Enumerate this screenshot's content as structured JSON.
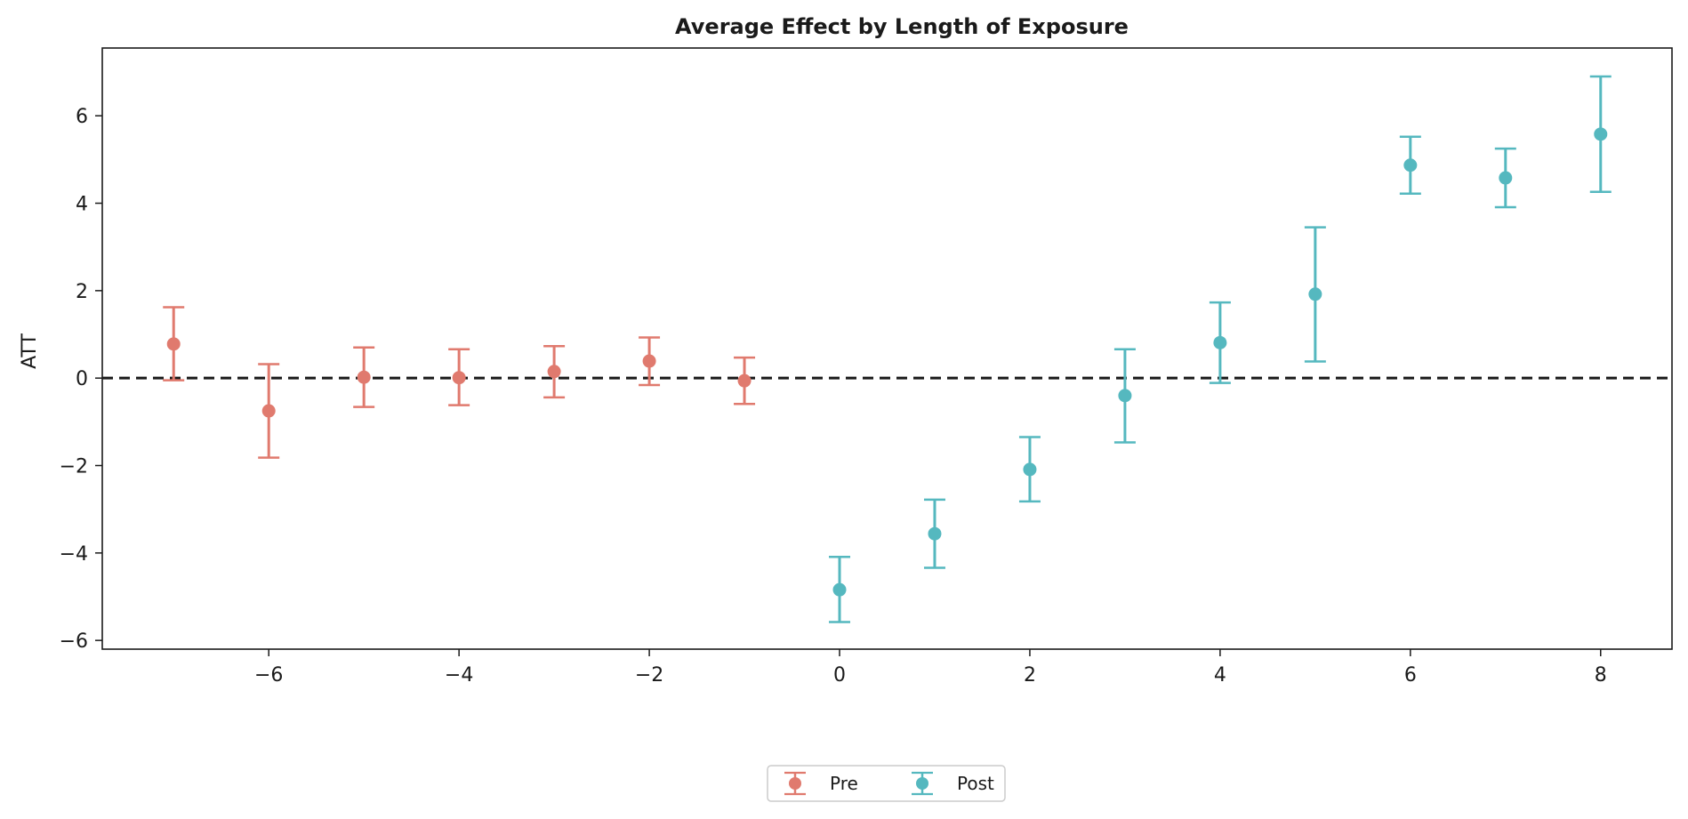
{
  "chart_data": {
    "type": "scatter",
    "title": "Average Effect by Length of Exposure",
    "xlabel": "",
    "ylabel": "ATT",
    "xlim": [
      -7.75,
      8.75
    ],
    "ylim": [
      -6.2,
      7.55
    ],
    "xticks": [
      -6,
      -4,
      -2,
      0,
      2,
      4,
      6,
      8
    ],
    "yticks": [
      -6,
      -4,
      -2,
      0,
      2,
      4,
      6
    ],
    "reference_line": 0,
    "grid": false,
    "legend_position": "bottom-center",
    "series": [
      {
        "name": "Pre",
        "color": "#e07a6e",
        "points": [
          {
            "x": -7,
            "y": 0.78,
            "lower": -0.05,
            "upper": 1.62
          },
          {
            "x": -6,
            "y": -0.75,
            "lower": -1.82,
            "upper": 0.32
          },
          {
            "x": -5,
            "y": 0.02,
            "lower": -0.66,
            "upper": 0.7
          },
          {
            "x": -4,
            "y": 0.01,
            "lower": -0.62,
            "upper": 0.66
          },
          {
            "x": -3,
            "y": 0.15,
            "lower": -0.44,
            "upper": 0.73
          },
          {
            "x": -2,
            "y": 0.39,
            "lower": -0.16,
            "upper": 0.93
          },
          {
            "x": -1,
            "y": -0.06,
            "lower": -0.59,
            "upper": 0.47
          }
        ]
      },
      {
        "name": "Post",
        "color": "#55b8bf",
        "points": [
          {
            "x": 0,
            "y": -4.84,
            "lower": -5.58,
            "upper": -4.09
          },
          {
            "x": 1,
            "y": -3.56,
            "lower": -4.34,
            "upper": -2.78
          },
          {
            "x": 2,
            "y": -2.09,
            "lower": -2.82,
            "upper": -1.35
          },
          {
            "x": 3,
            "y": -0.4,
            "lower": -1.47,
            "upper": 0.66
          },
          {
            "x": 4,
            "y": 0.81,
            "lower": -0.11,
            "upper": 1.73
          },
          {
            "x": 5,
            "y": 1.92,
            "lower": 0.38,
            "upper": 3.45
          },
          {
            "x": 6,
            "y": 4.87,
            "lower": 4.22,
            "upper": 5.52
          },
          {
            "x": 7,
            "y": 4.58,
            "lower": 3.91,
            "upper": 5.25
          },
          {
            "x": 8,
            "y": 5.58,
            "lower": 4.26,
            "upper": 6.9
          }
        ]
      }
    ]
  }
}
